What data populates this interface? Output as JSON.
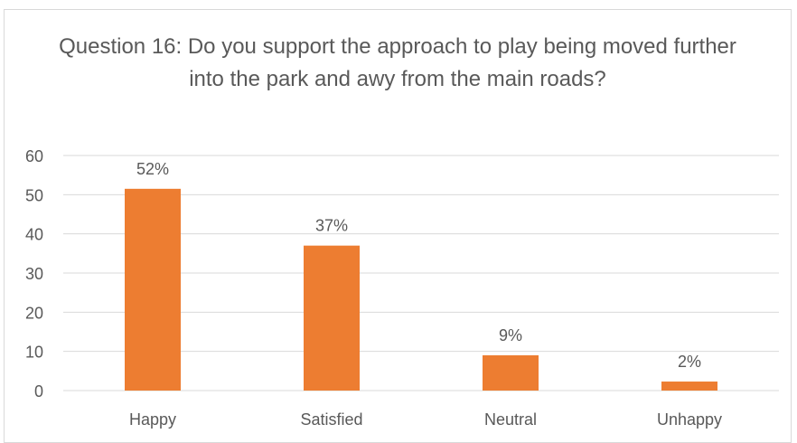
{
  "chart_data": {
    "type": "bar",
    "title": "Question 16: Do you support the approach to play being moved further into the park and awy from the main roads?",
    "xlabel": "",
    "ylabel": "",
    "categories": [
      "Happy",
      "Satisfied",
      "Neutral",
      "Unhappy"
    ],
    "values": [
      51.5,
      37,
      9,
      2.3
    ],
    "data_labels": [
      "52%",
      "37%",
      "9%",
      "2%"
    ],
    "ylim": [
      0,
      60
    ],
    "yticks": [
      0,
      10,
      20,
      30,
      40,
      50,
      60
    ],
    "grid": true,
    "legend": "none",
    "colors": {
      "bar": "#ED7D31",
      "grid": "#d9d9d9",
      "text": "#595959"
    }
  }
}
